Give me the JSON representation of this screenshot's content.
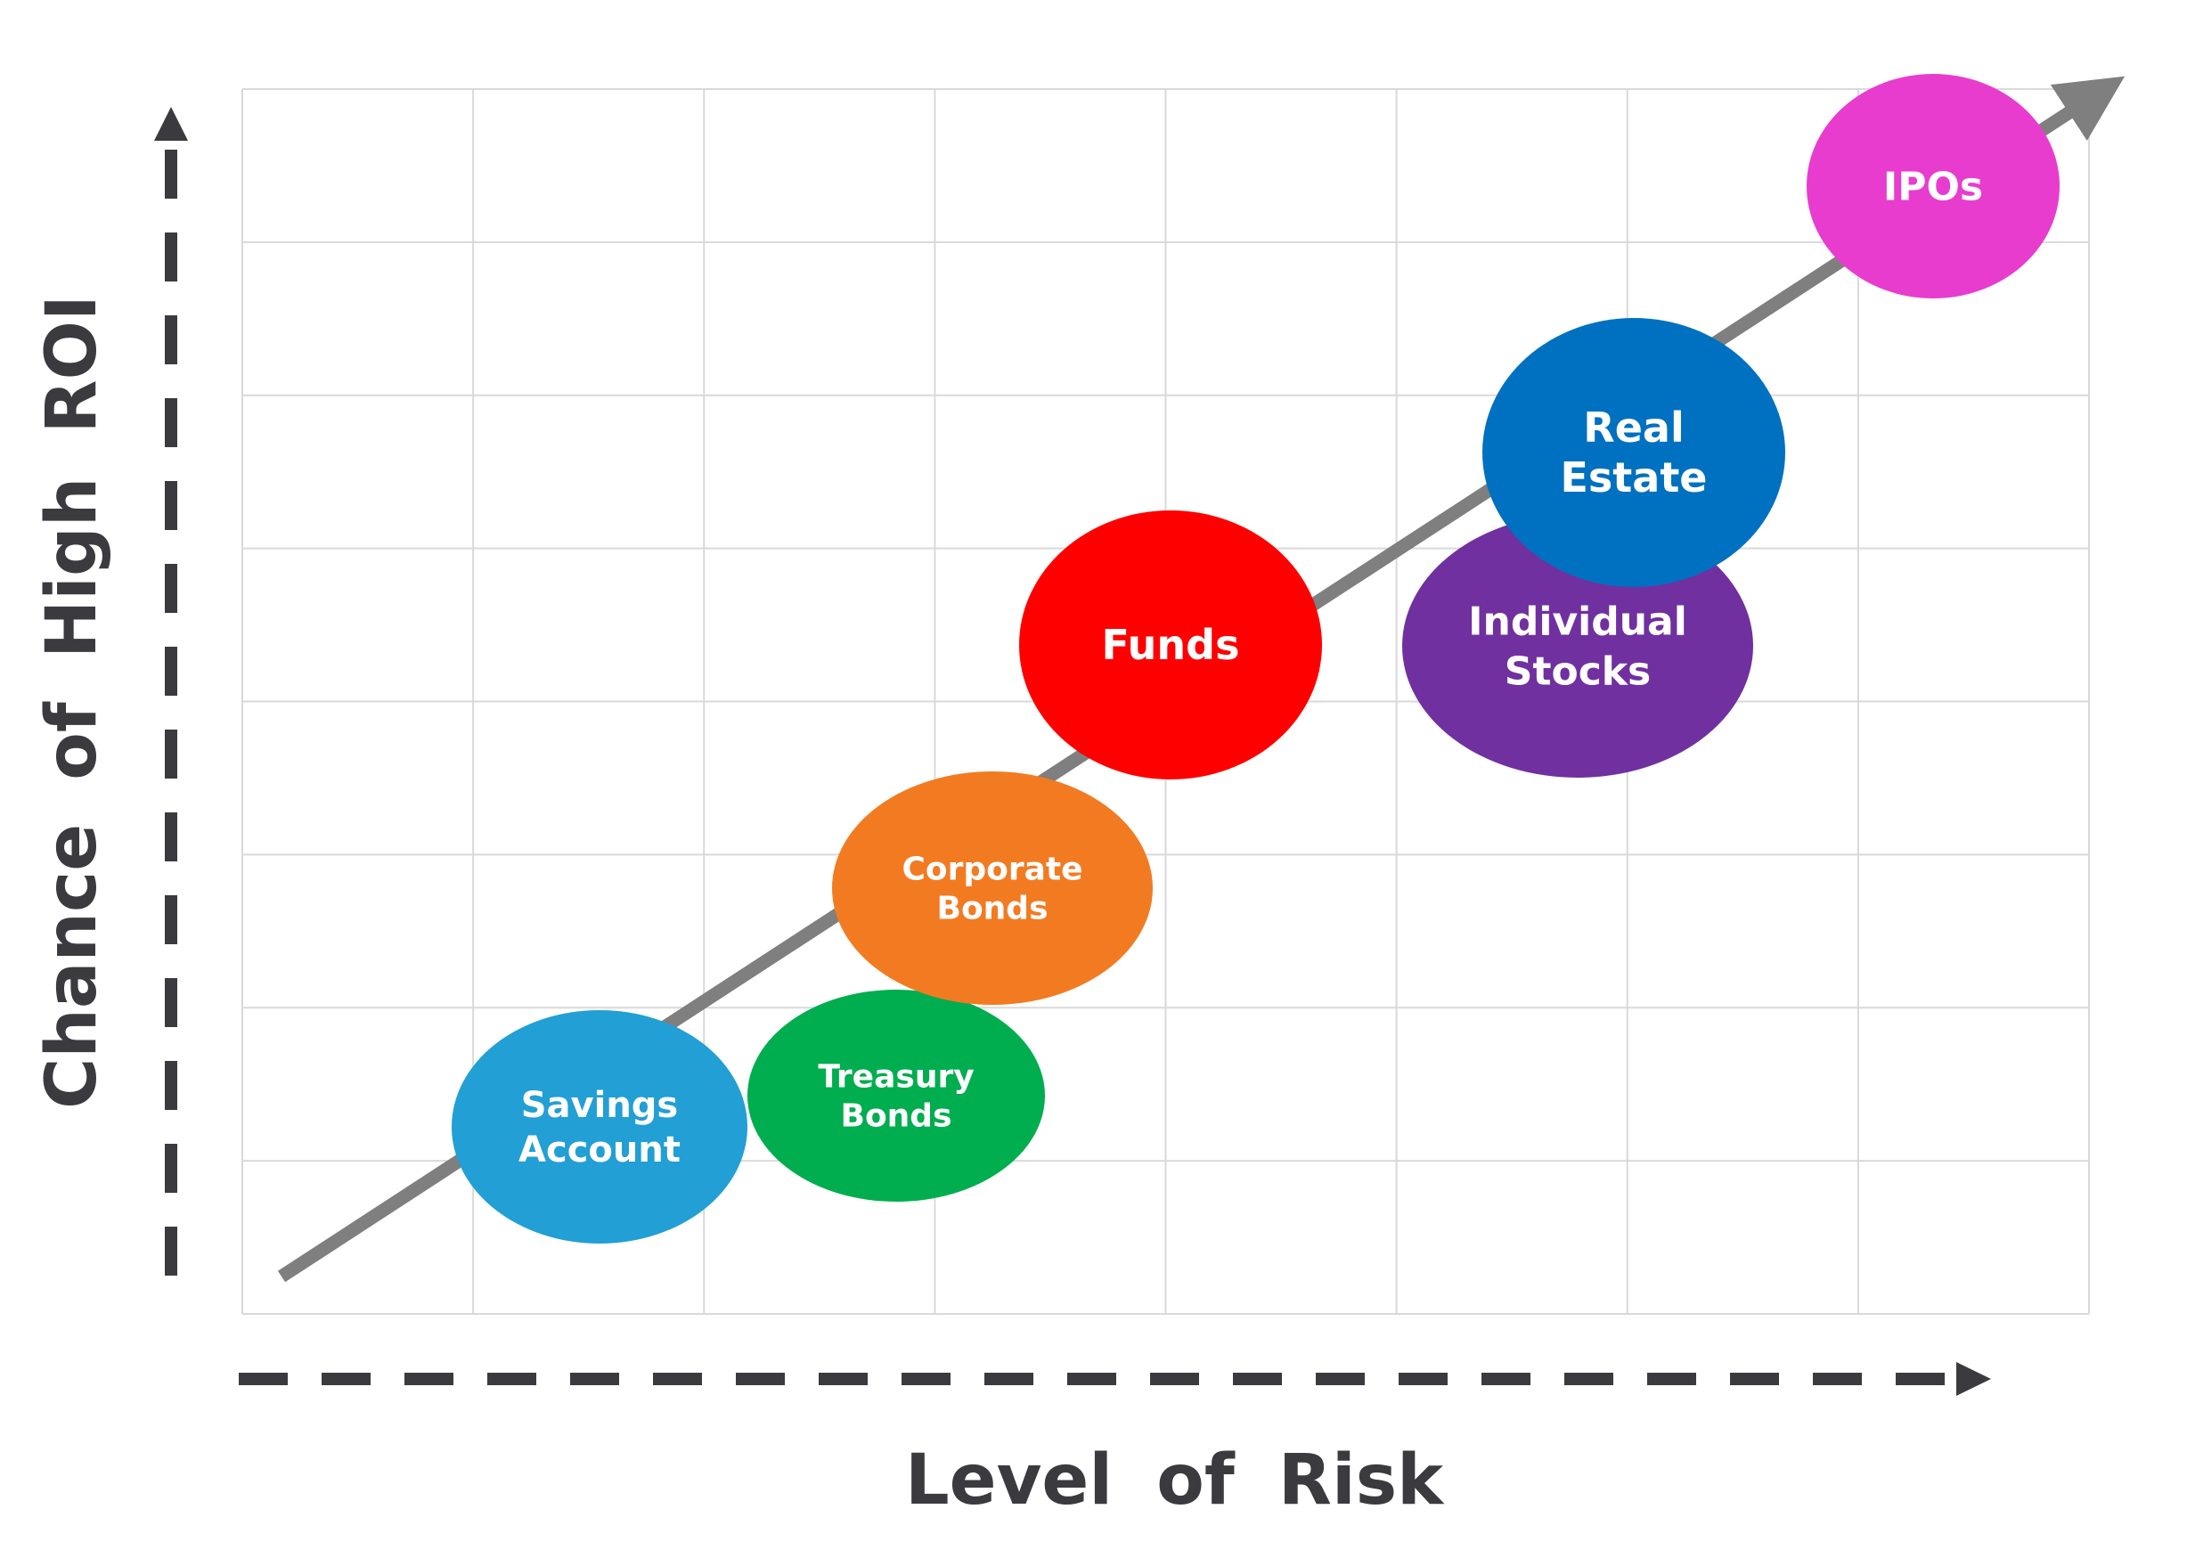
{
  "axes": {
    "x_title": "Level of Risk",
    "y_title": "Chance of High ROI"
  },
  "colors": {
    "axis": "#3a3a3f",
    "grid": "#d9d9d9",
    "trend": "#7f7f7f"
  },
  "bubbles": [
    {
      "id": "savings-account",
      "lines": [
        "Savings",
        "Account"
      ],
      "color": "#229fd4"
    },
    {
      "id": "treasury-bonds",
      "lines": [
        "Treasury",
        "Bonds"
      ],
      "color": "#00ad4f"
    },
    {
      "id": "corporate-bonds",
      "lines": [
        "Corporate",
        "Bonds"
      ],
      "color": "#f27b22"
    },
    {
      "id": "funds",
      "lines": [
        "Funds"
      ],
      "color": "#ff0000"
    },
    {
      "id": "individual-stocks",
      "lines": [
        "Individual",
        "Stocks"
      ],
      "color": "#7030a0"
    },
    {
      "id": "real-estate",
      "lines": [
        "Real",
        "Estate"
      ],
      "color": "#0070c0"
    },
    {
      "id": "ipos",
      "lines": [
        "IPOs"
      ],
      "color": "#e83ccf"
    }
  ]
}
